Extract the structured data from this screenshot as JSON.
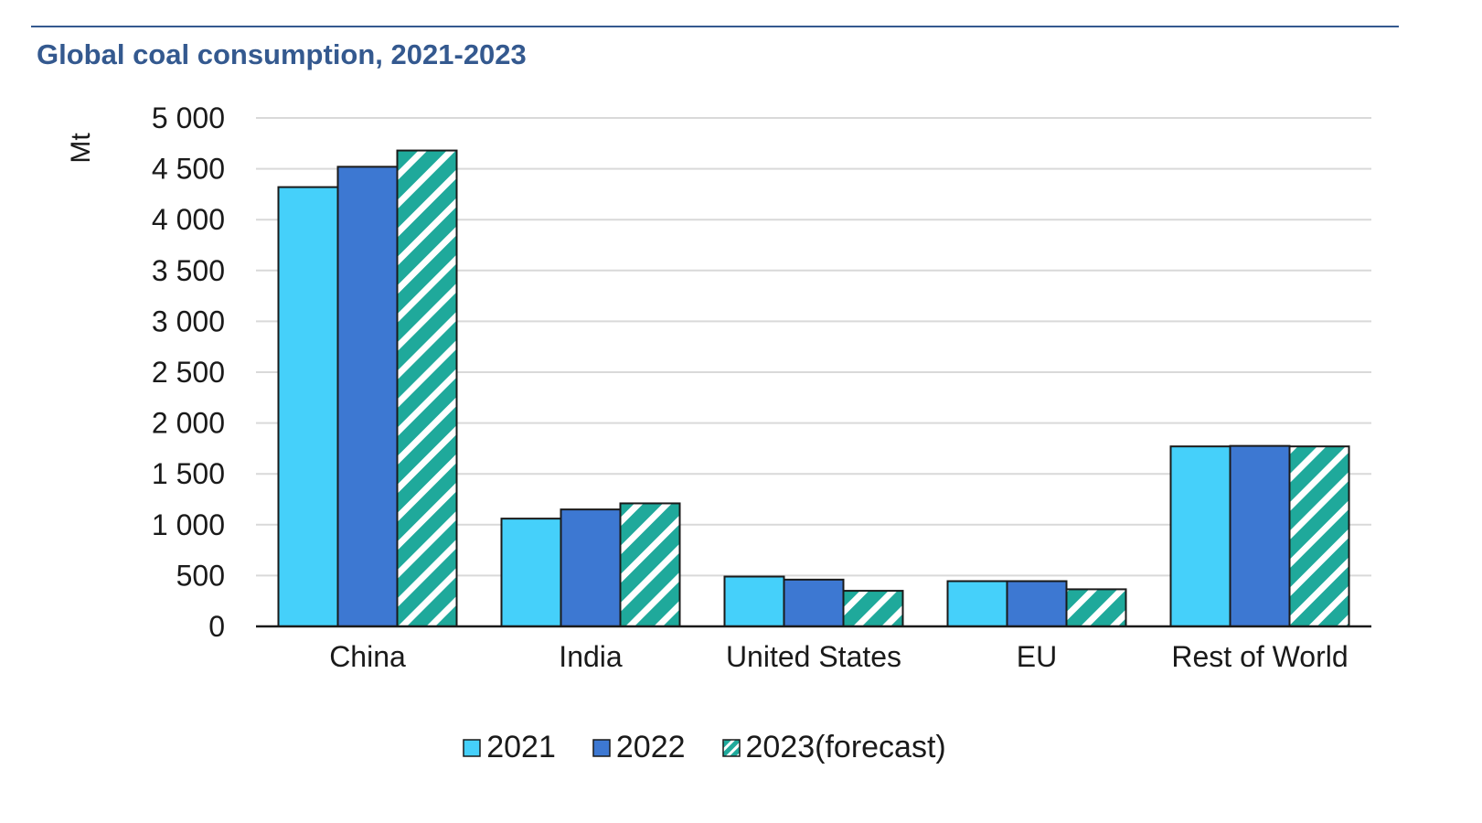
{
  "chart_data": {
    "type": "bar",
    "title": "Global coal consumption, 2021-2023",
    "ylabel": "Mt",
    "xlabel": "",
    "ylim": [
      0,
      5000
    ],
    "yticks": [
      0,
      500,
      1000,
      1500,
      2000,
      2500,
      3000,
      3500,
      4000,
      4500,
      5000
    ],
    "ytick_labels": [
      "0",
      "500",
      "1 000",
      "1 500",
      "2 000",
      "2 500",
      "3 000",
      "3 500",
      "4 000",
      "4 500",
      "5 000"
    ],
    "grid": true,
    "legend_position": "bottom",
    "categories": [
      "China",
      "India",
      "United States",
      "EU",
      "Rest of World"
    ],
    "series": [
      {
        "name": "2021",
        "values": [
          4320,
          1060,
          490,
          445,
          1770
        ],
        "color": "#45d0fa",
        "pattern": "solid"
      },
      {
        "name": "2022",
        "values": [
          4520,
          1150,
          460,
          445,
          1775
        ],
        "color": "#3d78d2",
        "pattern": "solid"
      },
      {
        "name": "2023(forecast)",
        "values": [
          4680,
          1210,
          350,
          365,
          1770
        ],
        "color": "#1fa99b",
        "pattern": "hatched"
      }
    ]
  }
}
